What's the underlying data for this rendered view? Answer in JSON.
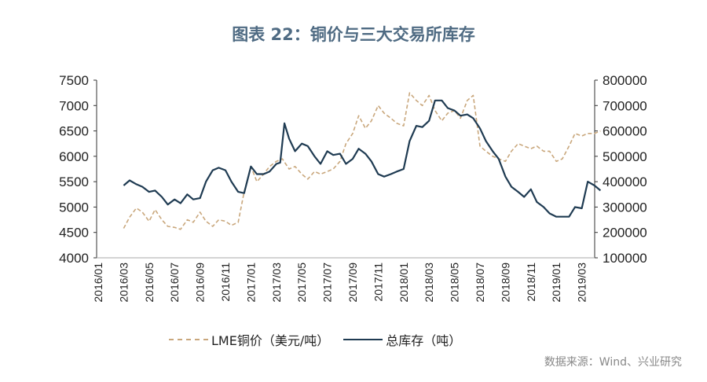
{
  "title": "图表 22：铜价与三大交易所库存",
  "source": "数据来源：Wind、兴业研究",
  "chart_data": {
    "type": "line",
    "title": "图表 22：铜价与三大交易所库存",
    "y_left": {
      "range": [
        4000,
        7500
      ],
      "ticks": [
        "4000",
        "4500",
        "5000",
        "5500",
        "6000",
        "6500",
        "7000",
        "7500"
      ]
    },
    "y_right": {
      "range": [
        100000,
        800000
      ],
      "ticks": [
        "100000",
        "200000",
        "300000",
        "400000",
        "500000",
        "600000",
        "700000",
        "800000"
      ]
    },
    "x_ticks": [
      "2016/01",
      "2016/03",
      "2016/05",
      "2016/07",
      "2016/09",
      "2016/11",
      "2017/01",
      "2017/03",
      "2017/05",
      "2017/07",
      "2017/09",
      "2017/11",
      "2018/01",
      "2018/03",
      "2018/05",
      "2018/07",
      "2018/09",
      "2018/11",
      "2019/01",
      "2019/03"
    ],
    "grid": false,
    "legend_placement": "bottom",
    "series": [
      {
        "name": "LME铜价（美元/吨）",
        "axis": "left",
        "style": "dashed",
        "color": "#c9a77c",
        "x": [
          "2016-03-01",
          "2016-03-15",
          "2016-04-01",
          "2016-04-15",
          "2016-05-01",
          "2016-05-15",
          "2016-06-01",
          "2016-06-15",
          "2016-07-01",
          "2016-07-15",
          "2016-08-01",
          "2016-08-15",
          "2016-09-01",
          "2016-09-15",
          "2016-10-01",
          "2016-10-15",
          "2016-11-01",
          "2016-11-15",
          "2016-12-01",
          "2016-12-15",
          "2017-01-01",
          "2017-01-15",
          "2017-02-01",
          "2017-02-15",
          "2017-03-01",
          "2017-03-15",
          "2017-04-01",
          "2017-04-15",
          "2017-05-01",
          "2017-05-15",
          "2017-06-01",
          "2017-06-15",
          "2017-07-01",
          "2017-07-15",
          "2017-08-01",
          "2017-08-15",
          "2017-09-01",
          "2017-09-15",
          "2017-10-01",
          "2017-10-15",
          "2017-11-01",
          "2017-11-15",
          "2017-12-01",
          "2017-12-15",
          "2018-01-01",
          "2018-01-15",
          "2018-02-01",
          "2018-02-15",
          "2018-03-01",
          "2018-03-15",
          "2018-04-01",
          "2018-04-15",
          "2018-05-01",
          "2018-05-15",
          "2018-06-01",
          "2018-06-15",
          "2018-07-01",
          "2018-07-15",
          "2018-08-01",
          "2018-08-15",
          "2018-09-01",
          "2018-09-15",
          "2018-10-01",
          "2018-10-15",
          "2018-11-01",
          "2018-11-15",
          "2018-12-01",
          "2018-12-15",
          "2019-01-01",
          "2019-01-15",
          "2019-02-01",
          "2019-02-15",
          "2019-03-01",
          "2019-03-15",
          "2019-04-01",
          "2019-04-15"
        ],
        "values": [
          4580,
          4800,
          4980,
          4900,
          4720,
          4950,
          4750,
          4620,
          4600,
          4560,
          4750,
          4700,
          4900,
          4720,
          4620,
          4750,
          4720,
          4640,
          4700,
          5300,
          5800,
          5500,
          5650,
          5800,
          5900,
          5950,
          5750,
          5800,
          5650,
          5550,
          5700,
          5650,
          5700,
          5750,
          5900,
          6250,
          6450,
          6800,
          6550,
          6700,
          7000,
          6850,
          6750,
          6650,
          6600,
          7250,
          7100,
          7000,
          7200,
          6900,
          6700,
          6850,
          6900,
          6750,
          7100,
          7200,
          6200,
          6100,
          6000,
          5950,
          5900,
          6100,
          6250,
          6200,
          6150,
          6200,
          6100,
          6100,
          5900,
          5950,
          6200,
          6450,
          6400,
          6450,
          6450,
          6500
        ]
      },
      {
        "name": "总库存（吨）",
        "axis": "right",
        "style": "solid",
        "color": "#1f3b52",
        "x": [
          "2016-03-01",
          "2016-03-15",
          "2016-04-01",
          "2016-04-15",
          "2016-05-01",
          "2016-05-15",
          "2016-06-01",
          "2016-06-15",
          "2016-07-01",
          "2016-07-15",
          "2016-08-01",
          "2016-08-15",
          "2016-09-01",
          "2016-09-15",
          "2016-10-01",
          "2016-10-15",
          "2016-11-01",
          "2016-11-15",
          "2016-12-01",
          "2016-12-15",
          "2017-01-01",
          "2017-01-15",
          "2017-02-01",
          "2017-02-15",
          "2017-03-01",
          "2017-03-10",
          "2017-03-20",
          "2017-04-01",
          "2017-04-15",
          "2017-05-01",
          "2017-05-15",
          "2017-06-01",
          "2017-06-15",
          "2017-07-01",
          "2017-07-15",
          "2017-08-01",
          "2017-08-15",
          "2017-09-01",
          "2017-09-15",
          "2017-10-01",
          "2017-10-15",
          "2017-11-01",
          "2017-11-15",
          "2017-12-01",
          "2017-12-15",
          "2018-01-01",
          "2018-01-15",
          "2018-02-01",
          "2018-02-15",
          "2018-03-01",
          "2018-03-15",
          "2018-04-01",
          "2018-04-15",
          "2018-05-01",
          "2018-05-15",
          "2018-06-01",
          "2018-06-15",
          "2018-07-01",
          "2018-07-15",
          "2018-08-01",
          "2018-08-15",
          "2018-09-01",
          "2018-09-15",
          "2018-10-01",
          "2018-10-15",
          "2018-11-01",
          "2018-11-15",
          "2018-12-01",
          "2018-12-15",
          "2019-01-01",
          "2019-01-15",
          "2019-02-01",
          "2019-02-15",
          "2019-03-01",
          "2019-03-15",
          "2019-04-01",
          "2019-04-15"
        ],
        "values": [
          385000,
          405000,
          390000,
          380000,
          360000,
          365000,
          340000,
          310000,
          330000,
          315000,
          350000,
          330000,
          335000,
          400000,
          445000,
          455000,
          445000,
          400000,
          360000,
          355000,
          460000,
          430000,
          430000,
          440000,
          470000,
          475000,
          630000,
          570000,
          520000,
          550000,
          540000,
          500000,
          470000,
          520000,
          505000,
          510000,
          470000,
          490000,
          530000,
          510000,
          480000,
          430000,
          420000,
          430000,
          440000,
          450000,
          560000,
          620000,
          615000,
          640000,
          720000,
          720000,
          690000,
          680000,
          660000,
          665000,
          650000,
          610000,
          560000,
          520000,
          490000,
          420000,
          380000,
          360000,
          340000,
          370000,
          320000,
          300000,
          275000,
          262000,
          262000,
          262000,
          300000,
          295000,
          400000,
          385000,
          365000
        ]
      }
    ]
  },
  "legend": {
    "copper": "LME铜价（美元/吨）",
    "inventory": "总库存（吨）"
  }
}
